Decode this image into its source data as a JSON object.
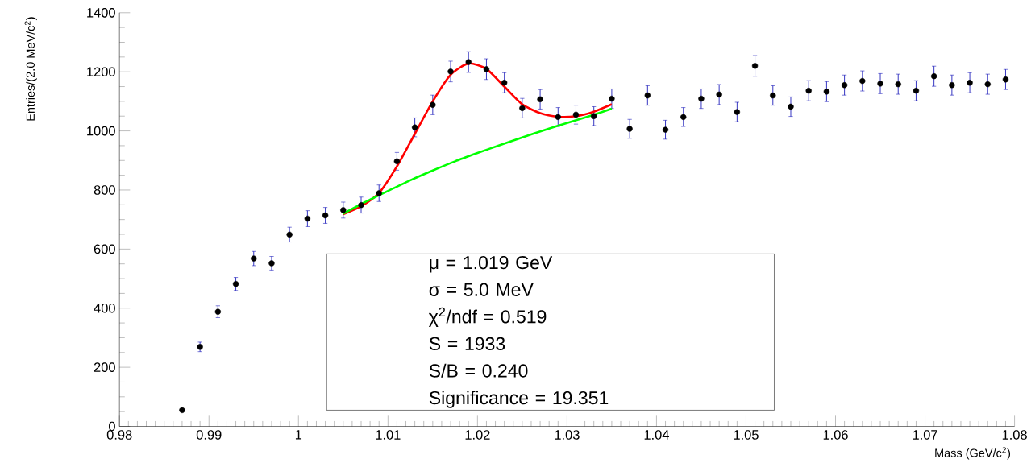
{
  "chart_data": {
    "type": "scatter",
    "xlabel": "Mass (GeV/c$^{2}$)",
    "ylabel": "Entries/(2.0 MeV/c$^{2}$)",
    "xlim": [
      0.98,
      1.08
    ],
    "ylim": [
      0,
      1400
    ],
    "xticks": [
      0.98,
      0.99,
      {
        "value": 1.0,
        "label": "1"
      },
      1.01,
      1.02,
      1.03,
      1.04,
      1.05,
      1.06,
      1.07,
      1.08
    ],
    "yticks": [
      0,
      200,
      400,
      600,
      800,
      1000,
      1200,
      1400
    ],
    "grid": false,
    "series": [
      {
        "color": "#000000",
        "marker": "circle",
        "x": [
          0.987,
          0.989,
          0.991,
          0.993,
          0.995,
          0.997,
          0.999,
          1.001,
          1.003,
          1.005,
          1.007,
          1.009,
          1.011,
          1.013,
          1.015,
          1.017,
          1.019,
          1.021,
          1.023,
          1.025,
          1.027,
          1.029,
          1.031,
          1.033,
          1.035,
          1.037,
          1.039,
          1.041,
          1.043,
          1.045,
          1.047,
          1.049,
          1.051,
          1.053,
          1.055,
          1.057,
          1.059,
          1.061,
          1.063,
          1.065,
          1.067,
          1.069,
          1.071,
          1.073,
          1.075,
          1.077,
          1.079
        ],
        "values": [
          55,
          269,
          388,
          482,
          568,
          552,
          649,
          703,
          714,
          732,
          749,
          789,
          897,
          1012,
          1088,
          1201,
          1233,
          1209,
          1163,
          1077,
          1107,
          1047,
          1055,
          1050,
          1109,
          1007,
          1120,
          1004,
          1047,
          1109,
          1123,
          1064,
          1220,
          1120,
          1082,
          1136,
          1133,
          1155,
          1169,
          1160,
          1158,
          1136,
          1185,
          1155,
          1163,
          1158,
          1174
        ],
        "errors": [
          null,
          16,
          20,
          22,
          24,
          23,
          25,
          27,
          27,
          27,
          27,
          28,
          30,
          32,
          33,
          35,
          35,
          35,
          34,
          33,
          33,
          32,
          32,
          32,
          33,
          32,
          33,
          32,
          32,
          33,
          34,
          33,
          35,
          33,
          33,
          34,
          34,
          34,
          34,
          34,
          34,
          34,
          34,
          34,
          34,
          34,
          34
        ]
      },
      {
        "type": "line",
        "color": "#ff0000",
        "marker": "none",
        "x": [
          1.005,
          1.007,
          1.009,
          1.011,
          1.013,
          1.015,
          1.017,
          1.019,
          1.021,
          1.023,
          1.025,
          1.027,
          1.029,
          1.031,
          1.033,
          1.035
        ],
        "values": [
          718,
          745,
          790,
          880,
          990,
          1100,
          1190,
          1228,
          1210,
          1150,
          1090,
          1060,
          1048,
          1050,
          1065,
          1090
        ]
      },
      {
        "type": "line",
        "color": "#00ff00",
        "marker": "none",
        "x": [
          1.005,
          1.0075,
          1.01,
          1.0125,
          1.015,
          1.0175,
          1.02,
          1.0225,
          1.025,
          1.0275,
          1.03,
          1.0325,
          1.035
        ],
        "values": [
          720,
          760,
          797,
          833,
          866,
          897,
          925,
          952,
          978,
          1003,
          1027,
          1050,
          1075
        ]
      }
    ],
    "annotations": [
      "μ = 1.019 GeV",
      "σ =  5.0 MeV",
      "χ$^{2}$/ndf = 0.519",
      "S = 1933",
      "S/B = 0.240",
      "Significance = 19.351"
    ]
  }
}
